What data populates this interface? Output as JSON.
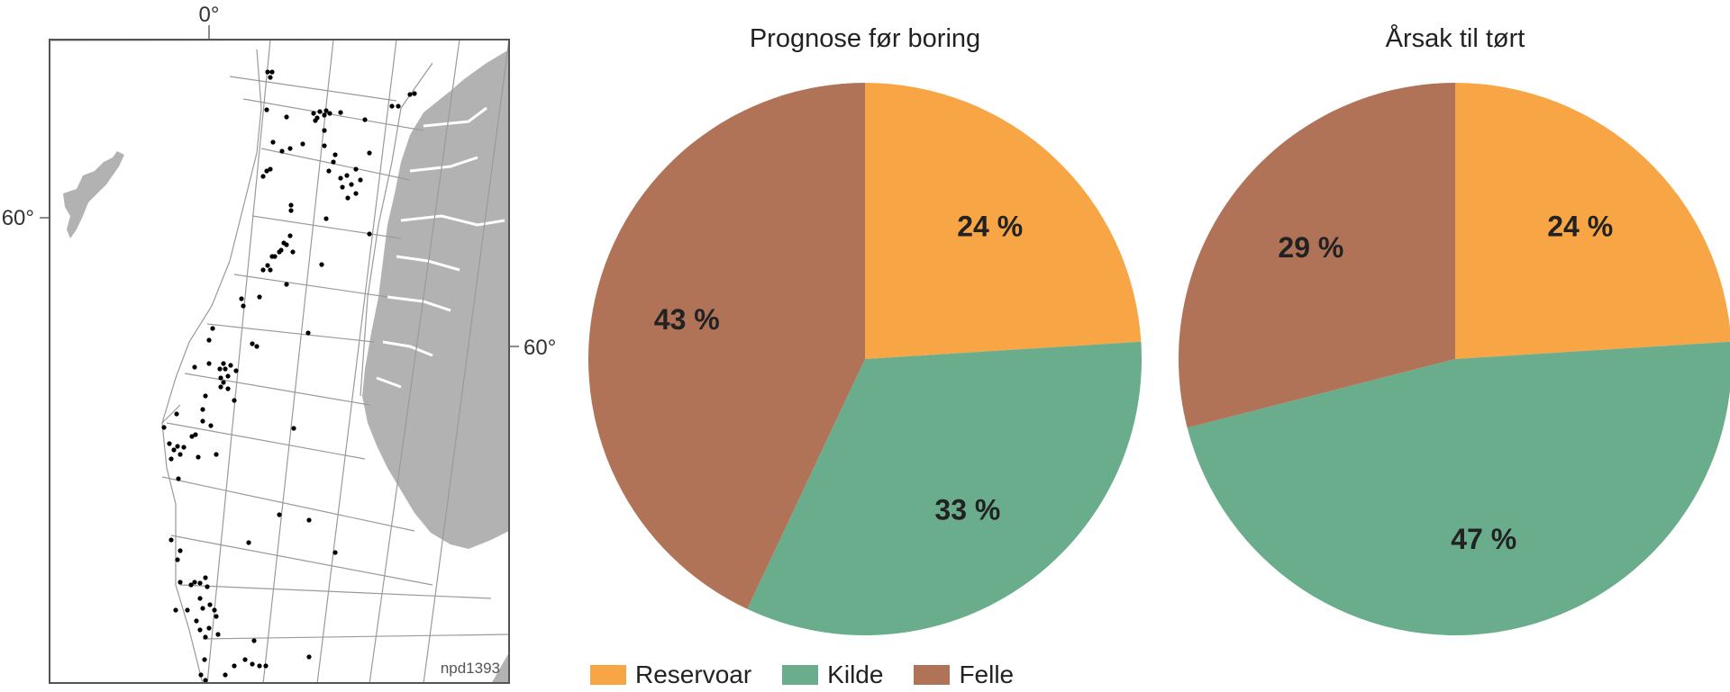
{
  "map": {
    "lon_label": "0°",
    "lat_label_left": "60°",
    "lat_label_right": "60°",
    "tag": "npd1393"
  },
  "legend": [
    {
      "name": "Reservoar",
      "color": "#F7A545"
    },
    {
      "name": "Kilde",
      "color": "#6AAD8D"
    },
    {
      "name": "Felle",
      "color": "#B07358"
    }
  ],
  "chart_data": [
    {
      "type": "pie",
      "title": "Prognose før boring",
      "categories": [
        "Reservoar",
        "Kilde",
        "Felle"
      ],
      "values": [
        24,
        33,
        43
      ],
      "labels": [
        "24 %",
        "33 %",
        "43 %"
      ],
      "colors": [
        "#F7A545",
        "#6AAD8D",
        "#B07358"
      ]
    },
    {
      "type": "pie",
      "title": "Årsak til tørt",
      "categories": [
        "Reservoar",
        "Kilde",
        "Felle"
      ],
      "values": [
        24,
        47,
        29
      ],
      "labels": [
        "24 %",
        "47 %",
        "29 %"
      ],
      "colors": [
        "#F7A545",
        "#6AAD8D",
        "#B07358"
      ]
    }
  ]
}
